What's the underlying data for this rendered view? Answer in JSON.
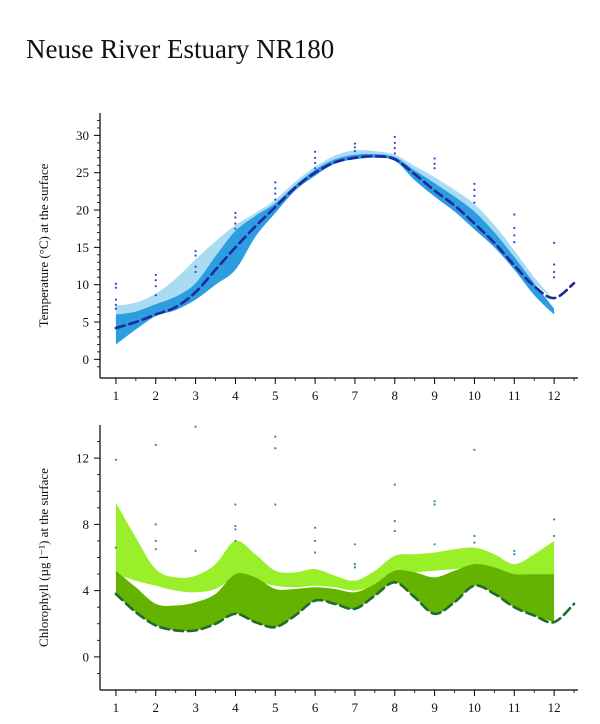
{
  "page": {
    "title": "Neuse River Estuary NR180"
  },
  "chart_data": [
    {
      "type": "line",
      "ylabel": "Temperature (°C) at the surface",
      "xlabel": "",
      "xlim": [
        0.6,
        12.6
      ],
      "ylim": [
        -2.5,
        33
      ],
      "x_ticks": [
        1,
        2,
        3,
        4,
        5,
        6,
        7,
        8,
        9,
        10,
        11,
        12
      ],
      "y_ticks": [
        0,
        5,
        10,
        15,
        20,
        25,
        30
      ],
      "y_minor_ticks": [
        -1,
        1,
        2,
        3,
        4,
        6,
        7,
        8,
        9,
        11,
        12,
        13,
        14,
        16,
        17,
        18,
        19,
        21,
        22,
        23,
        24,
        26,
        27,
        28,
        29,
        31,
        32
      ],
      "colors": {
        "light_band": "#a9dcf3",
        "dark_band": "#2b9de0",
        "median_line": "#1f2a9a",
        "points": "#3344d6"
      },
      "series": [
        {
          "role": "light_band",
          "x": [
            1,
            1.5,
            2,
            2.5,
            3,
            3.5,
            4,
            4.5,
            5,
            5.5,
            6,
            6.5,
            7,
            7.5,
            8,
            8.5,
            9,
            9.5,
            10,
            10.5,
            11,
            11.5,
            12
          ],
          "upper": [
            7.2,
            7.6,
            8.8,
            10.8,
            13.4,
            15.8,
            18.0,
            19.6,
            21.4,
            23.8,
            25.8,
            27.3,
            28.0,
            27.9,
            27.4,
            25.9,
            24.4,
            22.7,
            20.8,
            18.0,
            14.6,
            11.0,
            8.0
          ],
          "lower": [
            4.6,
            5.6,
            6.6,
            8.0,
            9.4,
            11.8,
            14.6,
            17.4,
            20.0,
            22.8,
            25.1,
            26.5,
            27.1,
            27.2,
            26.8,
            24.7,
            22.8,
            20.9,
            18.8,
            16.0,
            12.8,
            10.2,
            8.0
          ]
        },
        {
          "role": "dark_band",
          "x": [
            1,
            1.5,
            2,
            2.5,
            3,
            3.5,
            4,
            4.5,
            5,
            5.5,
            6,
            6.5,
            7,
            7.5,
            8,
            8.5,
            9,
            9.5,
            10,
            10.5,
            11,
            11.5,
            12
          ],
          "upper": [
            6.0,
            6.4,
            7.4,
            8.4,
            10.2,
            13.8,
            17.2,
            19.2,
            20.9,
            23.3,
            25.4,
            26.8,
            27.4,
            27.5,
            27.1,
            25.3,
            23.6,
            21.8,
            19.8,
            17.0,
            13.7,
            10.2,
            6.8
          ],
          "lower": [
            2.0,
            4.0,
            5.8,
            6.6,
            8.0,
            10.0,
            12.0,
            16.4,
            19.6,
            22.6,
            24.6,
            26.2,
            26.8,
            27.0,
            26.6,
            24.0,
            21.8,
            19.8,
            17.4,
            15.0,
            12.0,
            8.6,
            6.0
          ]
        },
        {
          "role": "median_line",
          "x": [
            1,
            1.5,
            2,
            2.5,
            3,
            3.5,
            4,
            4.5,
            5,
            5.5,
            6,
            6.5,
            7,
            7.5,
            8,
            8.5,
            9,
            9.5,
            10,
            10.5,
            11,
            11.5,
            12,
            12.5
          ],
          "values": [
            4.2,
            5.0,
            6.0,
            7.0,
            9.0,
            12.0,
            15.0,
            17.8,
            20.4,
            23.0,
            25.0,
            26.4,
            27.0,
            27.2,
            26.8,
            24.8,
            22.6,
            20.6,
            18.2,
            15.6,
            12.6,
            9.8,
            8.2,
            10.2
          ]
        },
        {
          "role": "points",
          "points": [
            [
              1,
              10.1
            ],
            [
              1,
              9.6
            ],
            [
              1,
              8.0
            ],
            [
              1,
              7.3
            ],
            [
              1,
              6.8
            ],
            [
              2,
              11.3
            ],
            [
              2,
              10.6
            ],
            [
              2,
              9.8
            ],
            [
              2,
              8.6
            ],
            [
              3,
              14.5
            ],
            [
              3,
              13.9
            ],
            [
              3,
              12.4
            ],
            [
              3,
              11.7
            ],
            [
              4,
              19.6
            ],
            [
              4,
              19.0
            ],
            [
              4,
              18.2
            ],
            [
              4,
              17.5
            ],
            [
              5,
              23.7
            ],
            [
              5,
              22.9
            ],
            [
              5,
              22.2
            ],
            [
              5,
              21.4
            ],
            [
              6,
              27.8
            ],
            [
              6,
              27.0
            ],
            [
              6,
              26.3
            ],
            [
              6,
              25.6
            ],
            [
              7,
              28.9
            ],
            [
              7,
              28.4
            ],
            [
              7,
              27.9
            ],
            [
              8,
              29.8
            ],
            [
              8,
              29.0
            ],
            [
              8,
              28.3
            ],
            [
              8,
              27.6
            ],
            [
              9,
              26.9
            ],
            [
              9,
              26.2
            ],
            [
              9,
              25.6
            ],
            [
              10,
              23.5
            ],
            [
              10,
              22.7
            ],
            [
              10,
              21.9
            ],
            [
              10,
              21.0
            ],
            [
              11,
              19.4
            ],
            [
              11,
              17.6
            ],
            [
              11,
              16.6
            ],
            [
              11,
              15.7
            ],
            [
              12,
              15.6
            ],
            [
              12,
              12.7
            ],
            [
              12,
              11.7
            ],
            [
              12,
              11.0
            ]
          ]
        }
      ]
    },
    {
      "type": "line",
      "ylabel": "Chlorophyll (µg l⁻¹) at the surface",
      "xlabel": "",
      "xlim": [
        0.6,
        12.6
      ],
      "ylim": [
        -2,
        14
      ],
      "x_ticks": [
        1,
        2,
        3,
        4,
        5,
        6,
        7,
        8,
        9,
        10,
        11,
        12
      ],
      "x_tick_labels": [
        "1",
        "2",
        "3",
        "4",
        "5",
        "6",
        "7",
        "8",
        "9",
        "10",
        "11",
        "12"
      ],
      "y_ticks": [
        0,
        4,
        8,
        12
      ],
      "y_minor_ticks": [
        -1,
        1,
        2,
        3,
        5,
        6,
        7,
        9,
        10,
        11,
        13
      ],
      "colors": {
        "light_band": "#99f02a",
        "dark_band": "#64b300",
        "median_line": "#1f6b34",
        "points": "#2c8a9e"
      },
      "series": [
        {
          "role": "light_band",
          "x": [
            1,
            1.5,
            2,
            2.5,
            3,
            3.5,
            4,
            4.5,
            5,
            5.5,
            6,
            6.5,
            7,
            7.5,
            8,
            8.5,
            9,
            9.5,
            10,
            10.5,
            11,
            11.5,
            12
          ],
          "upper": [
            9.3,
            7.2,
            5.3,
            4.8,
            4.9,
            5.6,
            7.0,
            6.2,
            5.2,
            5.1,
            5.3,
            4.9,
            4.6,
            5.2,
            6.1,
            6.2,
            6.3,
            6.5,
            6.6,
            6.2,
            5.6,
            6.2,
            7.0
          ],
          "lower": [
            5.0,
            4.6,
            4.3,
            4.0,
            3.9,
            4.1,
            4.8,
            4.6,
            4.3,
            4.2,
            4.3,
            4.2,
            4.0,
            4.3,
            5.0,
            5.1,
            5.2,
            5.3,
            5.4,
            5.2,
            4.9,
            5.0,
            5.0
          ]
        },
        {
          "role": "dark_band",
          "x": [
            1,
            1.5,
            2,
            2.5,
            3,
            3.5,
            4,
            4.5,
            5,
            5.5,
            6,
            6.5,
            7,
            7.5,
            8,
            8.5,
            9,
            9.5,
            10,
            10.5,
            11,
            11.5,
            12
          ],
          "upper": [
            5.2,
            4.2,
            3.2,
            3.1,
            3.3,
            3.8,
            5.0,
            4.8,
            4.1,
            4.1,
            4.2,
            4.1,
            3.9,
            4.4,
            5.2,
            5.1,
            4.8,
            5.2,
            5.6,
            5.4,
            5.0,
            5.0,
            5.0
          ],
          "lower": [
            3.8,
            2.7,
            1.9,
            1.6,
            1.6,
            2.0,
            2.6,
            2.1,
            1.8,
            2.5,
            3.4,
            3.2,
            2.9,
            3.7,
            4.5,
            3.6,
            2.6,
            3.3,
            4.3,
            3.8,
            3.0,
            2.5,
            2.1
          ]
        },
        {
          "role": "median_line",
          "x": [
            1,
            1.5,
            2,
            2.5,
            3,
            3.5,
            4,
            4.5,
            5,
            5.5,
            6,
            6.5,
            7,
            7.5,
            8,
            8.5,
            9,
            9.5,
            10,
            10.5,
            11,
            11.5,
            12,
            12.5
          ],
          "values": [
            3.8,
            2.7,
            1.9,
            1.6,
            1.6,
            2.0,
            2.6,
            2.1,
            1.8,
            2.5,
            3.4,
            3.2,
            2.9,
            3.7,
            4.5,
            3.6,
            2.6,
            3.3,
            4.3,
            3.8,
            3.0,
            2.5,
            2.1,
            3.2
          ]
        },
        {
          "role": "points",
          "points": [
            [
              1,
              11.9
            ],
            [
              1,
              6.6
            ],
            [
              2,
              12.8
            ],
            [
              2,
              8.0
            ],
            [
              2,
              7.0
            ],
            [
              2,
              6.5
            ],
            [
              3,
              13.9
            ],
            [
              3,
              6.4
            ],
            [
              4,
              9.2
            ],
            [
              4,
              7.9
            ],
            [
              4,
              7.7
            ],
            [
              4,
              7.0
            ],
            [
              5,
              13.3
            ],
            [
              5,
              12.6
            ],
            [
              5,
              9.2
            ],
            [
              6,
              7.8
            ],
            [
              6,
              7.0
            ],
            [
              6,
              6.3
            ],
            [
              7,
              6.8
            ],
            [
              7,
              5.6
            ],
            [
              7,
              5.4
            ],
            [
              8,
              10.4
            ],
            [
              8,
              8.2
            ],
            [
              8,
              7.6
            ],
            [
              9,
              9.4
            ],
            [
              9,
              9.2
            ],
            [
              9,
              6.8
            ],
            [
              10,
              12.5
            ],
            [
              10,
              7.3
            ],
            [
              10,
              6.9
            ],
            [
              11,
              6.4
            ],
            [
              11,
              6.2
            ],
            [
              12,
              8.3
            ],
            [
              12,
              7.3
            ]
          ]
        }
      ]
    }
  ]
}
